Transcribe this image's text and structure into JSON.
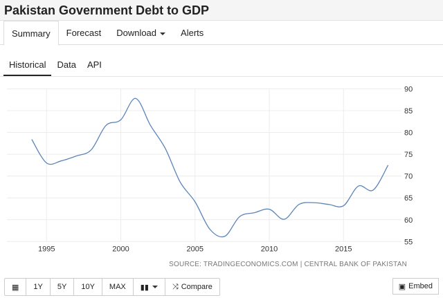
{
  "title": "Pakistan Government Debt to GDP",
  "tabs": [
    "Summary",
    "Forecast",
    "Download",
    "Alerts"
  ],
  "subtabs": [
    "Historical",
    "Data",
    "API"
  ],
  "source": "SOURCE: TRADINGECONOMICS.COM | CENTRAL BANK OF PAKISTAN",
  "toolbar": {
    "range": [
      "1Y",
      "5Y",
      "10Y",
      "MAX"
    ],
    "compare": "Compare",
    "embed": "Embed"
  },
  "chart_data": {
    "type": "line",
    "line_color": "#5b84b8",
    "x": [
      1994,
      1995,
      1996,
      1997,
      1998,
      1999,
      2000,
      2001,
      2002,
      2003,
      2004,
      2005,
      2006,
      2007,
      2008,
      2009,
      2010,
      2011,
      2012,
      2013,
      2014,
      2015,
      2016,
      2017,
      2018
    ],
    "values": [
      78.4,
      73.0,
      73.5,
      74.6,
      76.0,
      81.6,
      82.9,
      87.8,
      81.6,
      76.3,
      68.6,
      64.1,
      57.8,
      56.2,
      60.7,
      61.6,
      62.4,
      60.1,
      63.5,
      63.9,
      63.5,
      63.2,
      67.7,
      66.8,
      72.5
    ],
    "xticks": [
      "1995",
      "2000",
      "2005",
      "2010",
      "2015"
    ],
    "yticks": [
      "90",
      "85",
      "80",
      "75",
      "70",
      "65",
      "60",
      "55"
    ],
    "ylim": [
      55,
      90
    ],
    "grid": true
  }
}
